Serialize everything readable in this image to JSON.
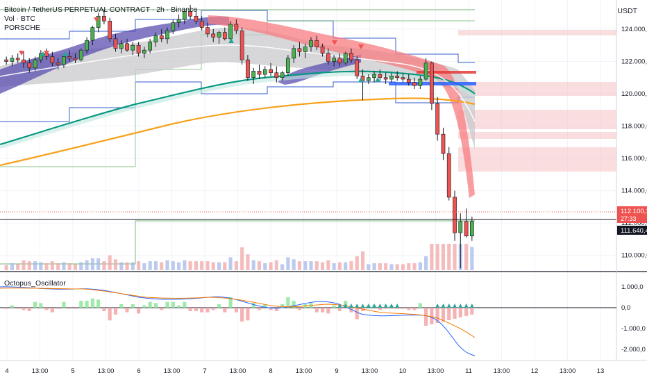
{
  "header": {
    "symbol_line": "Bitcoin / TetherUS PERPETUAL CONTRACT · 2h · Binance",
    "indicator_1": "Vol · BTC",
    "indicator_2": "PORSCHE",
    "currency": "USDT"
  },
  "oscillator": {
    "name": "Octopus_Oscillator",
    "ticks": [
      "1.000,0",
      "0,0",
      "-1.000,0",
      "-2.000,0"
    ]
  },
  "price_axis": {
    "ticks": [
      "124.000,0",
      "122.000,0",
      "120.000,0",
      "118.000,0",
      "116.000,0",
      "114.000,0",
      "112.000,0",
      "110.000,0"
    ]
  },
  "price_tags": {
    "current_price": "112.100,1",
    "countdown": "27:33",
    "crosshair_price": "111.640,4"
  },
  "signals": {
    "buy_label": "Buy"
  },
  "time_axis": {
    "labels": [
      "4",
      "13:00",
      "5",
      "13:00",
      "6",
      "13:00",
      "7",
      "13:00",
      "8",
      "13:00",
      "9",
      "13:00",
      "10",
      "13:00",
      "11",
      "13:00",
      "12",
      "13:00",
      "13"
    ]
  },
  "colors": {
    "up": "#26a69a",
    "down": "#ef5350",
    "ema_teal": "#089981",
    "ema_orange": "#f7a21b",
    "band_purple": "#5b4fb0",
    "band_red": "#f77c80",
    "level_blue": "#5b7bd5",
    "level_green": "#8fc48f"
  },
  "chart_data": {
    "type": "candlestick",
    "interval": "2h",
    "y_range": [
      109000,
      125800
    ],
    "candles_ohlc": [
      [
        122100,
        122300,
        121800,
        122000
      ],
      [
        122000,
        122400,
        121700,
        122200
      ],
      [
        122200,
        122500,
        121900,
        122100
      ],
      [
        122100,
        122600,
        121600,
        121900
      ],
      [
        121900,
        122200,
        121300,
        121600
      ],
      [
        121600,
        122300,
        121400,
        122100
      ],
      [
        122100,
        122700,
        121900,
        122500
      ],
      [
        122500,
        122800,
        122100,
        122300
      ],
      [
        122300,
        122600,
        121700,
        121900
      ],
      [
        121900,
        122200,
        121500,
        121800
      ],
      [
        121800,
        122400,
        121600,
        122300
      ],
      [
        122300,
        122700,
        122000,
        122200
      ],
      [
        122200,
        122500,
        121900,
        122100
      ],
      [
        122100,
        122800,
        122000,
        122700
      ],
      [
        122700,
        123500,
        122500,
        123300
      ],
      [
        123300,
        124200,
        123000,
        124100
      ],
      [
        124100,
        125000,
        123800,
        124800
      ],
      [
        124800,
        125200,
        124300,
        124500
      ],
      [
        124500,
        124700,
        123200,
        123400
      ],
      [
        123400,
        123700,
        122600,
        122800
      ],
      [
        122800,
        123300,
        122500,
        123100
      ],
      [
        123100,
        123400,
        122600,
        122700
      ],
      [
        122700,
        123200,
        122400,
        123000
      ],
      [
        123000,
        123200,
        122300,
        122500
      ],
      [
        122500,
        122900,
        122200,
        122700
      ],
      [
        122700,
        123400,
        122500,
        123200
      ],
      [
        123200,
        123800,
        122900,
        123600
      ],
      [
        123600,
        124000,
        123200,
        123400
      ],
      [
        123400,
        124100,
        123100,
        123900
      ],
      [
        123900,
        124600,
        123700,
        124400
      ],
      [
        124400,
        124900,
        124100,
        124600
      ],
      [
        124600,
        125300,
        124300,
        125100
      ],
      [
        125100,
        125500,
        124600,
        124800
      ],
      [
        124800,
        125200,
        124300,
        124500
      ],
      [
        124500,
        124800,
        123900,
        124100
      ],
      [
        124100,
        124400,
        123500,
        123700
      ],
      [
        123700,
        124000,
        123200,
        123500
      ],
      [
        123500,
        123900,
        123100,
        123800
      ],
      [
        123800,
        124100,
        123300,
        123400
      ],
      [
        123400,
        124500,
        123200,
        124300
      ],
      [
        124300,
        124600,
        123700,
        123900
      ],
      [
        123900,
        124100,
        121800,
        122100
      ],
      [
        122100,
        122400,
        120800,
        121000
      ],
      [
        121000,
        121600,
        120600,
        121400
      ],
      [
        121400,
        121800,
        120900,
        121200
      ],
      [
        121200,
        121700,
        121000,
        121500
      ],
      [
        121500,
        121900,
        121100,
        121300
      ],
      [
        121300,
        121700,
        120700,
        121000
      ],
      [
        121000,
        121400,
        120800,
        121300
      ],
      [
        121300,
        122400,
        121100,
        122200
      ],
      [
        122200,
        123000,
        121900,
        122800
      ],
      [
        122800,
        123200,
        122300,
        122600
      ],
      [
        122600,
        123100,
        122200,
        122900
      ],
      [
        122900,
        123500,
        122600,
        123300
      ],
      [
        123300,
        123600,
        122700,
        122900
      ],
      [
        122900,
        123100,
        122300,
        122500
      ],
      [
        122500,
        122800,
        121800,
        122000
      ],
      [
        122000,
        122400,
        121700,
        122200
      ],
      [
        122200,
        122500,
        121700,
        121900
      ],
      [
        121900,
        122600,
        121800,
        122500
      ],
      [
        122500,
        122800,
        121900,
        122100
      ],
      [
        122100,
        122300,
        120900,
        121100
      ],
      [
        121100,
        121500,
        119600,
        120800
      ],
      [
        120800,
        121200,
        120600,
        121000
      ],
      [
        121000,
        121400,
        120700,
        121200
      ],
      [
        121200,
        121500,
        120800,
        121000
      ],
      [
        121000,
        121300,
        120600,
        120900
      ],
      [
        120900,
        121300,
        120700,
        121100
      ],
      [
        121100,
        121400,
        120800,
        121000
      ],
      [
        121000,
        121300,
        120700,
        120900
      ],
      [
        120900,
        121200,
        120500,
        120700
      ],
      [
        120700,
        121000,
        120300,
        120500
      ],
      [
        120500,
        121100,
        120300,
        120900
      ],
      [
        120900,
        122200,
        120800,
        121900
      ],
      [
        121900,
        122000,
        119000,
        119400
      ],
      [
        119400,
        119800,
        117100,
        117500
      ],
      [
        117500,
        117900,
        115900,
        116300
      ],
      [
        116300,
        116700,
        113400,
        113600
      ],
      [
        113600,
        114000,
        110900,
        111400
      ],
      [
        111400,
        112600,
        109200,
        112100
      ],
      [
        112100,
        112900,
        111100,
        111200
      ],
      [
        111200,
        112400,
        110900,
        112100
      ]
    ],
    "ema_slow_last": 119500,
    "volume_note": "relative volume bars, spike on 11th"
  }
}
